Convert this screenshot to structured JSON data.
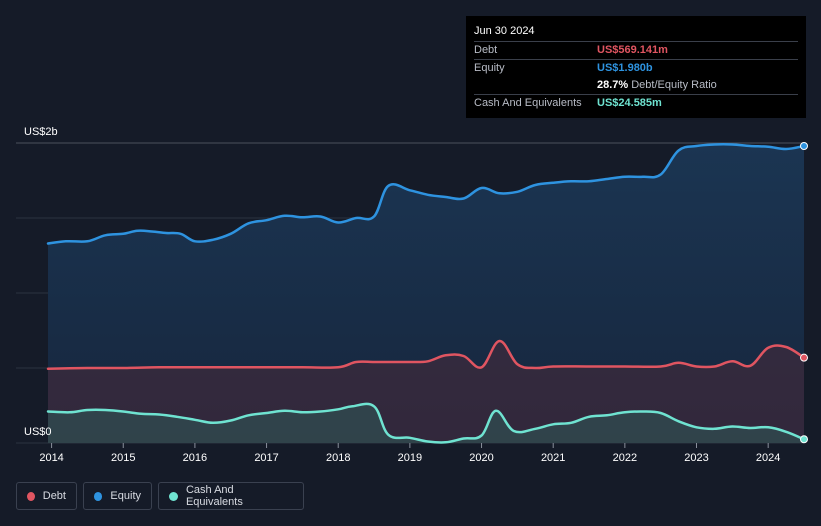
{
  "tooltip": {
    "date": "Jun 30 2024",
    "debt_label": "Debt",
    "debt_value": "US$569.141m",
    "equity_label": "Equity",
    "equity_value": "US$1.980b",
    "ratio_value": "28.7%",
    "ratio_label": "Debt/Equity Ratio",
    "cash_label": "Cash And Equivalents",
    "cash_value": "US$24.585m"
  },
  "colors": {
    "debt": "#e05561",
    "equity": "#2e93e0",
    "cash": "#6fe3d1",
    "background": "#151b28"
  },
  "legend": [
    {
      "name": "Debt",
      "color": "#e05561"
    },
    {
      "name": "Equity",
      "color": "#2e93e0"
    },
    {
      "name": "Cash And Equivalents",
      "color": "#6fe3d1"
    }
  ],
  "chart_data": {
    "type": "area",
    "ylabel_top": "US$2b",
    "ylabel_bottom": "US$0",
    "ylim": [
      0,
      2000
    ],
    "xlim": [
      2013.95,
      2024.5
    ],
    "x_ticks": [
      2014,
      2015,
      2016,
      2017,
      2018,
      2019,
      2020,
      2021,
      2022,
      2023,
      2024
    ],
    "x_tick_labels": [
      "2014",
      "2015",
      "2016",
      "2017",
      "2018",
      "2019",
      "2020",
      "2021",
      "2022",
      "2023",
      "2024"
    ],
    "grid": true,
    "series": [
      {
        "name": "Equity",
        "unit": "US$m",
        "x": [
          2013.95,
          2014.2,
          2014.5,
          2014.75,
          2015.0,
          2015.2,
          2015.4,
          2015.6,
          2015.8,
          2016.0,
          2016.25,
          2016.5,
          2016.75,
          2017.0,
          2017.25,
          2017.5,
          2017.75,
          2018.0,
          2018.25,
          2018.5,
          2018.7,
          2019.0,
          2019.25,
          2019.5,
          2019.75,
          2020.0,
          2020.25,
          2020.5,
          2020.75,
          2021.0,
          2021.25,
          2021.5,
          2021.75,
          2022.0,
          2022.25,
          2022.5,
          2022.75,
          2023.0,
          2023.25,
          2023.5,
          2023.75,
          2024.0,
          2024.25,
          2024.5
        ],
        "values": [
          1330,
          1345,
          1345,
          1385,
          1395,
          1415,
          1410,
          1400,
          1395,
          1345,
          1355,
          1395,
          1465,
          1485,
          1515,
          1505,
          1510,
          1470,
          1500,
          1510,
          1715,
          1685,
          1655,
          1640,
          1630,
          1700,
          1665,
          1675,
          1720,
          1735,
          1745,
          1745,
          1760,
          1775,
          1775,
          1790,
          1950,
          1980,
          1990,
          1990,
          1980,
          1975,
          1960,
          1980
        ]
      },
      {
        "name": "Debt",
        "unit": "US$m",
        "x": [
          2013.95,
          2014.5,
          2015.0,
          2015.5,
          2016.0,
          2016.5,
          2017.0,
          2017.5,
          2018.0,
          2018.25,
          2018.5,
          2018.75,
          2019.0,
          2019.25,
          2019.5,
          2019.75,
          2020.0,
          2020.25,
          2020.5,
          2020.75,
          2021.0,
          2021.5,
          2022.0,
          2022.5,
          2022.75,
          2023.0,
          2023.25,
          2023.5,
          2023.75,
          2024.0,
          2024.25,
          2024.5
        ],
        "values": [
          495,
          500,
          500,
          505,
          505,
          505,
          505,
          505,
          505,
          540,
          540,
          540,
          540,
          545,
          585,
          580,
          505,
          680,
          525,
          500,
          510,
          510,
          510,
          510,
          535,
          510,
          510,
          545,
          515,
          635,
          640,
          569
        ]
      },
      {
        "name": "Cash And Equivalents",
        "unit": "US$m",
        "x": [
          2013.95,
          2014.25,
          2014.5,
          2014.75,
          2015.0,
          2015.25,
          2015.5,
          2015.75,
          2016.0,
          2016.25,
          2016.5,
          2016.75,
          2017.0,
          2017.25,
          2017.5,
          2017.75,
          2018.0,
          2018.2,
          2018.5,
          2018.7,
          2019.0,
          2019.25,
          2019.5,
          2019.75,
          2020.0,
          2020.2,
          2020.45,
          2020.75,
          2021.0,
          2021.25,
          2021.5,
          2021.75,
          2022.0,
          2022.25,
          2022.5,
          2022.75,
          2023.0,
          2023.25,
          2023.5,
          2023.75,
          2024.0,
          2024.25,
          2024.5
        ],
        "values": [
          210,
          205,
          220,
          220,
          210,
          195,
          190,
          175,
          155,
          135,
          150,
          185,
          200,
          215,
          205,
          210,
          225,
          245,
          245,
          55,
          35,
          10,
          5,
          30,
          50,
          215,
          80,
          95,
          125,
          135,
          175,
          185,
          205,
          210,
          200,
          145,
          105,
          95,
          110,
          100,
          105,
          75,
          25
        ]
      }
    ]
  }
}
